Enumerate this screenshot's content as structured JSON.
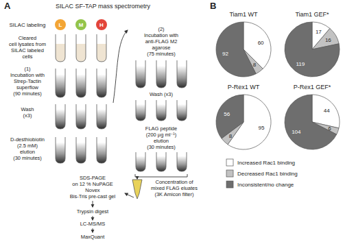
{
  "panel_a": {
    "label": "A",
    "title": "SILAC SF-TAP mass spectrometry",
    "silac_label": "SILAC labeling",
    "channels": [
      {
        "letter": "L",
        "color": "#f3a535"
      },
      {
        "letter": "M",
        "color": "#93c44a"
      },
      {
        "letter": "H",
        "color": "#e2453a"
      }
    ],
    "left_steps": [
      {
        "lines": [
          "Cleared",
          "cell lysates from",
          "SILAC labeled",
          "cells"
        ]
      },
      {
        "lines": [
          "(1)",
          "Incubation with",
          "Strep-Tactin",
          "superflow",
          "(90 minutes)"
        ]
      },
      {
        "lines": [
          "Wash",
          "(x3)"
        ]
      },
      {
        "lines": [
          "D-desthiobiotin",
          "(2.5 mM)",
          "elution",
          "(30 minutes)"
        ]
      }
    ],
    "right_steps": [
      {
        "lines": [
          "(2)",
          "Incubation with",
          "anti-FLAG M2",
          "agarose",
          "(75 minutes)"
        ]
      },
      {
        "lines": [
          "Wash (x3)"
        ]
      },
      {
        "lines": [
          "FLAG peptide",
          "(200 µg ml⁻¹)",
          "elution",
          "(30 minutes)"
        ]
      },
      {
        "lines": [
          "Concentration of",
          "mixed FLAG eluates",
          "(3K Amicon filter)"
        ]
      }
    ],
    "final_steps": [
      {
        "lines": [
          "SDS-PAGE",
          "on 12 % NuPAGE",
          "Novex",
          "Bis-Tris pre-cast gel"
        ]
      },
      {
        "lines": [
          "Trypsin digest"
        ]
      },
      {
        "lines": [
          "LC-MS/MS"
        ]
      },
      {
        "lines": [
          "MaxQuant"
        ]
      }
    ]
  },
  "panel_b": {
    "label": "B"
  },
  "chart_data": [
    {
      "type": "pie",
      "title": "Tiam1 WT",
      "categories": [
        "Increased Rac1 binding",
        "Decreased Rac1 binding",
        "Inconsistent/no change"
      ],
      "values": [
        60,
        8,
        92
      ],
      "colors": [
        "#ffffff",
        "#c2c2c2",
        "#6e6e6e"
      ],
      "data_labels": true,
      "legend": "bottom"
    },
    {
      "type": "pie",
      "title": "Tiam1 GEF*",
      "categories": [
        "Increased Rac1 binding",
        "Decreased Rac1 binding",
        "Inconsistent/no change"
      ],
      "values": [
        17,
        16,
        119
      ],
      "colors": [
        "#ffffff",
        "#c2c2c2",
        "#6e6e6e"
      ],
      "data_labels": true,
      "legend": "bottom"
    },
    {
      "type": "pie",
      "title": "P-Rex1 WT",
      "categories": [
        "Increased Rac1 binding",
        "Decreased Rac1 binding",
        "Inconsistent/no change"
      ],
      "values": [
        95,
        8,
        56
      ],
      "colors": [
        "#ffffff",
        "#c2c2c2",
        "#6e6e6e"
      ],
      "data_labels": true,
      "legend": "bottom"
    },
    {
      "type": "pie",
      "title": "P-Rex1 GEF*",
      "categories": [
        "Increased Rac1 binding",
        "Decreased Rac1 binding",
        "Inconsistent/no change"
      ],
      "values": [
        44,
        6,
        104
      ],
      "colors": [
        "#ffffff",
        "#c2c2c2",
        "#6e6e6e"
      ],
      "data_labels": true,
      "legend": "bottom"
    }
  ]
}
